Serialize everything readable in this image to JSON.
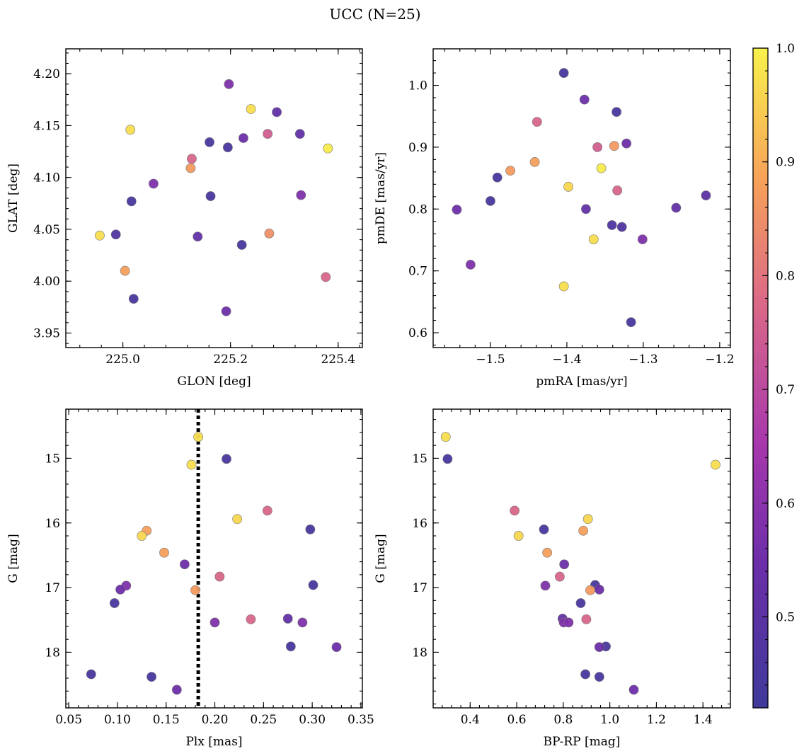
{
  "title": "UCC (N=25)",
  "colormap": {
    "name": "plasma-truncated",
    "vmin": 0.42,
    "vmax": 1.0,
    "stops": [
      [
        0.0,
        "#3e3a9a"
      ],
      [
        0.22,
        "#6c2ea9"
      ],
      [
        0.4,
        "#a737ad"
      ],
      [
        0.62,
        "#dc6a86"
      ],
      [
        0.8,
        "#f7a159"
      ],
      [
        1.0,
        "#f8f24c"
      ]
    ],
    "ticks": [
      0.5,
      0.6,
      0.7,
      0.8,
      0.9,
      1.0
    ],
    "tick_labels": [
      "0.5",
      "0.6",
      "0.7",
      "0.8",
      "0.9",
      "1.0"
    ]
  },
  "chart_data": [
    {
      "type": "scatter",
      "xlabel": "GLON [deg]",
      "ylabel": "GLAT [deg]",
      "xlim": [
        224.894,
        225.445
      ],
      "ylim": [
        3.936,
        4.224
      ],
      "invert_y": false,
      "xticks": [
        225.0,
        225.2,
        225.4
      ],
      "xtick_labels": [
        "225.0",
        "225.2",
        "225.4"
      ],
      "xminor": 0.04,
      "yticks": [
        3.95,
        4.0,
        4.05,
        4.1,
        4.15,
        4.2
      ],
      "ytick_labels": [
        "3.95",
        "4.00",
        "4.05",
        "4.10",
        "4.15",
        "4.20"
      ],
      "yminor": 0.01,
      "vline": null,
      "points": [
        {
          "x": 225.197,
          "y": 4.19,
          "c": 0.58
        },
        {
          "x": 225.238,
          "y": 4.166,
          "c": 0.97
        },
        {
          "x": 225.286,
          "y": 4.163,
          "c": 0.52
        },
        {
          "x": 225.014,
          "y": 4.146,
          "c": 0.97
        },
        {
          "x": 225.269,
          "y": 4.142,
          "c": 0.75
        },
        {
          "x": 225.329,
          "y": 4.142,
          "c": 0.52
        },
        {
          "x": 225.224,
          "y": 4.138,
          "c": 0.55
        },
        {
          "x": 225.161,
          "y": 4.134,
          "c": 0.45
        },
        {
          "x": 225.195,
          "y": 4.129,
          "c": 0.45
        },
        {
          "x": 225.381,
          "y": 4.128,
          "c": 0.99
        },
        {
          "x": 225.128,
          "y": 4.118,
          "c": 0.77
        },
        {
          "x": 225.126,
          "y": 4.109,
          "c": 0.87
        },
        {
          "x": 225.057,
          "y": 4.094,
          "c": 0.58
        },
        {
          "x": 225.331,
          "y": 4.083,
          "c": 0.58
        },
        {
          "x": 225.163,
          "y": 4.082,
          "c": 0.45
        },
        {
          "x": 225.016,
          "y": 4.077,
          "c": 0.45
        },
        {
          "x": 224.957,
          "y": 4.044,
          "c": 0.97
        },
        {
          "x": 224.987,
          "y": 4.045,
          "c": 0.47
        },
        {
          "x": 225.272,
          "y": 4.046,
          "c": 0.85
        },
        {
          "x": 225.139,
          "y": 4.043,
          "c": 0.52
        },
        {
          "x": 225.221,
          "y": 4.035,
          "c": 0.45
        },
        {
          "x": 225.004,
          "y": 4.01,
          "c": 0.88
        },
        {
          "x": 225.377,
          "y": 4.004,
          "c": 0.77
        },
        {
          "x": 225.02,
          "y": 3.983,
          "c": 0.45
        },
        {
          "x": 225.192,
          "y": 3.971,
          "c": 0.55
        }
      ]
    },
    {
      "type": "scatter",
      "xlabel": "pmRA [mas/yr]",
      "ylabel": "pmDE [mas/yr]",
      "xlim": [
        -1.575,
        -1.186
      ],
      "ylim": [
        0.576,
        1.059
      ],
      "invert_y": false,
      "xticks": [
        -1.5,
        -1.4,
        -1.3,
        -1.2
      ],
      "xtick_labels": [
        "−1.5",
        "−1.4",
        "−1.3",
        "−1.2"
      ],
      "xminor": 0.02,
      "yticks": [
        0.6,
        0.7,
        0.8,
        0.9,
        1.0
      ],
      "ytick_labels": [
        "0.6",
        "0.7",
        "0.8",
        "0.9",
        "1.0"
      ],
      "yminor": 0.02,
      "vline": null,
      "points": [
        {
          "x": -1.404,
          "y": 1.02,
          "c": 0.45
        },
        {
          "x": -1.377,
          "y": 0.977,
          "c": 0.55
        },
        {
          "x": -1.335,
          "y": 0.957,
          "c": 0.45
        },
        {
          "x": -1.439,
          "y": 0.941,
          "c": 0.77
        },
        {
          "x": -1.322,
          "y": 0.906,
          "c": 0.55
        },
        {
          "x": -1.338,
          "y": 0.902,
          "c": 0.87
        },
        {
          "x": -1.36,
          "y": 0.9,
          "c": 0.75
        },
        {
          "x": -1.442,
          "y": 0.876,
          "c": 0.88
        },
        {
          "x": -1.355,
          "y": 0.866,
          "c": 0.99
        },
        {
          "x": -1.474,
          "y": 0.862,
          "c": 0.87
        },
        {
          "x": -1.491,
          "y": 0.851,
          "c": 0.45
        },
        {
          "x": -1.398,
          "y": 0.836,
          "c": 0.96
        },
        {
          "x": -1.334,
          "y": 0.83,
          "c": 0.77
        },
        {
          "x": -1.218,
          "y": 0.822,
          "c": 0.5
        },
        {
          "x": -1.5,
          "y": 0.813,
          "c": 0.45
        },
        {
          "x": -1.544,
          "y": 0.799,
          "c": 0.55
        },
        {
          "x": -1.375,
          "y": 0.8,
          "c": 0.52
        },
        {
          "x": -1.257,
          "y": 0.802,
          "c": 0.52
        },
        {
          "x": -1.341,
          "y": 0.774,
          "c": 0.47
        },
        {
          "x": -1.328,
          "y": 0.771,
          "c": 0.47
        },
        {
          "x": -1.365,
          "y": 0.751,
          "c": 0.97
        },
        {
          "x": -1.301,
          "y": 0.751,
          "c": 0.58
        },
        {
          "x": -1.526,
          "y": 0.71,
          "c": 0.58
        },
        {
          "x": -1.404,
          "y": 0.675,
          "c": 0.97
        },
        {
          "x": -1.316,
          "y": 0.617,
          "c": 0.45
        }
      ]
    },
    {
      "type": "scatter",
      "xlabel": "Plx [mas]",
      "ylabel": "G [mag]",
      "xlim": [
        0.047,
        0.3515
      ],
      "ylim": [
        14.24,
        18.86
      ],
      "invert_y": true,
      "xticks": [
        0.05,
        0.1,
        0.15,
        0.2,
        0.25,
        0.3,
        0.35
      ],
      "xtick_labels": [
        "0.05",
        "0.10",
        "0.15",
        "0.20",
        "0.25",
        "0.30",
        "0.35"
      ],
      "xminor": 0.01,
      "yticks": [
        15,
        16,
        17,
        18
      ],
      "ytick_labels": [
        "15",
        "16",
        "17",
        "18"
      ],
      "yminor": 0.2,
      "vline": 0.183,
      "points": [
        {
          "x": 0.183,
          "y": 14.67,
          "c": 0.97
        },
        {
          "x": 0.176,
          "y": 15.1,
          "c": 0.97
        },
        {
          "x": 0.212,
          "y": 15.01,
          "c": 0.45
        },
        {
          "x": 0.254,
          "y": 15.81,
          "c": 0.77
        },
        {
          "x": 0.223,
          "y": 15.94,
          "c": 0.96
        },
        {
          "x": 0.298,
          "y": 16.1,
          "c": 0.45
        },
        {
          "x": 0.13,
          "y": 16.12,
          "c": 0.88
        },
        {
          "x": 0.125,
          "y": 16.2,
          "c": 0.96
        },
        {
          "x": 0.148,
          "y": 16.46,
          "c": 0.88
        },
        {
          "x": 0.169,
          "y": 16.64,
          "c": 0.55
        },
        {
          "x": 0.205,
          "y": 16.83,
          "c": 0.77
        },
        {
          "x": 0.301,
          "y": 16.96,
          "c": 0.45
        },
        {
          "x": 0.109,
          "y": 16.97,
          "c": 0.58
        },
        {
          "x": 0.103,
          "y": 17.03,
          "c": 0.55
        },
        {
          "x": 0.18,
          "y": 17.04,
          "c": 0.87
        },
        {
          "x": 0.097,
          "y": 17.24,
          "c": 0.45
        },
        {
          "x": 0.237,
          "y": 17.49,
          "c": 0.77
        },
        {
          "x": 0.275,
          "y": 17.48,
          "c": 0.52
        },
        {
          "x": 0.2,
          "y": 17.54,
          "c": 0.58
        },
        {
          "x": 0.29,
          "y": 17.54,
          "c": 0.58
        },
        {
          "x": 0.278,
          "y": 17.91,
          "c": 0.45
        },
        {
          "x": 0.325,
          "y": 17.92,
          "c": 0.55
        },
        {
          "x": 0.073,
          "y": 18.34,
          "c": 0.45
        },
        {
          "x": 0.135,
          "y": 18.38,
          "c": 0.45
        },
        {
          "x": 0.161,
          "y": 18.58,
          "c": 0.55
        }
      ]
    },
    {
      "type": "scatter",
      "xlabel": "BP-RP [mag]",
      "ylabel": "G [mag]",
      "xlim": [
        0.241,
        1.518
      ],
      "ylim": [
        14.24,
        18.86
      ],
      "invert_y": true,
      "xticks": [
        0.4,
        0.6,
        0.8,
        1.0,
        1.2,
        1.4
      ],
      "xtick_labels": [
        "0.4",
        "0.6",
        "0.8",
        "1.0",
        "1.2",
        "1.4"
      ],
      "xminor": 0.04,
      "yticks": [
        15,
        16,
        17,
        18
      ],
      "ytick_labels": [
        "15",
        "16",
        "17",
        "18"
      ],
      "yminor": 0.2,
      "vline": null,
      "points": [
        {
          "x": 0.295,
          "y": 14.67,
          "c": 0.97
        },
        {
          "x": 0.303,
          "y": 15.01,
          "c": 0.45
        },
        {
          "x": 1.454,
          "y": 15.1,
          "c": 0.97
        },
        {
          "x": 0.591,
          "y": 15.81,
          "c": 0.77
        },
        {
          "x": 0.906,
          "y": 15.94,
          "c": 0.96
        },
        {
          "x": 0.717,
          "y": 16.1,
          "c": 0.45
        },
        {
          "x": 0.886,
          "y": 16.12,
          "c": 0.88
        },
        {
          "x": 0.608,
          "y": 16.2,
          "c": 0.96
        },
        {
          "x": 0.731,
          "y": 16.46,
          "c": 0.88
        },
        {
          "x": 0.804,
          "y": 16.64,
          "c": 0.55
        },
        {
          "x": 0.785,
          "y": 16.83,
          "c": 0.77
        },
        {
          "x": 0.937,
          "y": 16.96,
          "c": 0.45
        },
        {
          "x": 0.723,
          "y": 16.97,
          "c": 0.58
        },
        {
          "x": 0.955,
          "y": 17.03,
          "c": 0.55
        },
        {
          "x": 0.916,
          "y": 17.04,
          "c": 0.87
        },
        {
          "x": 0.875,
          "y": 17.24,
          "c": 0.45
        },
        {
          "x": 0.899,
          "y": 17.49,
          "c": 0.77
        },
        {
          "x": 0.797,
          "y": 17.48,
          "c": 0.52
        },
        {
          "x": 0.802,
          "y": 17.54,
          "c": 0.58
        },
        {
          "x": 0.823,
          "y": 17.54,
          "c": 0.58
        },
        {
          "x": 0.983,
          "y": 17.91,
          "c": 0.45
        },
        {
          "x": 0.955,
          "y": 17.92,
          "c": 0.55
        },
        {
          "x": 0.895,
          "y": 18.34,
          "c": 0.45
        },
        {
          "x": 0.955,
          "y": 18.38,
          "c": 0.45
        },
        {
          "x": 1.103,
          "y": 18.58,
          "c": 0.55
        }
      ]
    }
  ]
}
